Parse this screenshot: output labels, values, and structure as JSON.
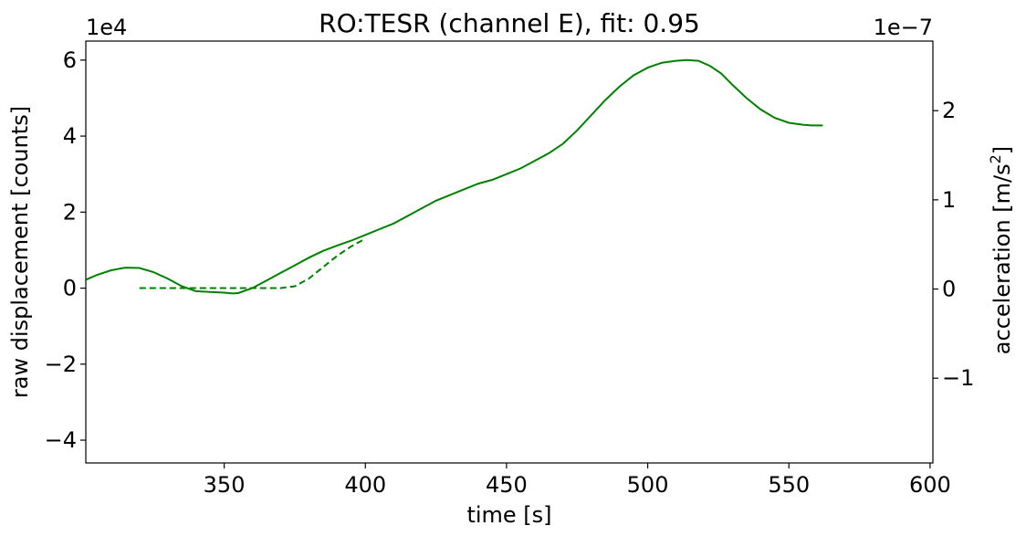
{
  "chart_data": {
    "type": "line",
    "title": "RO:TESR  (channel E), fit: 0.95",
    "xlabel": "time [s]",
    "ylabel_left": "raw displacement [counts]",
    "ylabel_right_prefix": "acceleration [m/s",
    "ylabel_right_sup": "2",
    "ylabel_right_suffix": "]",
    "left_offset_text": "1e4",
    "right_offset_text": "1e−7",
    "xlim": [
      301,
      601
    ],
    "ylim_left": [
      -4.6,
      6.5
    ],
    "ylim_right": [
      -1.95,
      2.78
    ],
    "x_ticks": [
      350,
      400,
      450,
      500,
      550,
      600
    ],
    "x_tick_labels": [
      "350",
      "400",
      "450",
      "500",
      "550",
      "600"
    ],
    "y_left_ticks": [
      -4,
      -2,
      0,
      2,
      4,
      6
    ],
    "y_left_tick_labels": [
      "−4",
      "−2",
      "0",
      "2",
      "4",
      "6"
    ],
    "y_right_ticks": [
      -1,
      0,
      1,
      2
    ],
    "y_right_tick_labels": [
      "−1",
      "0",
      "1",
      "2"
    ],
    "color": "#008000",
    "series": [
      {
        "style": "solid",
        "axis": "left",
        "x": [
          301,
          305,
          310,
          315,
          320,
          325,
          330,
          335,
          340,
          345,
          350,
          353,
          355,
          360,
          365,
          370,
          375,
          380,
          385,
          390,
          395,
          400,
          405,
          410,
          415,
          420,
          425,
          430,
          435,
          440,
          445,
          450,
          455,
          460,
          465,
          470,
          475,
          480,
          485,
          490,
          495,
          500,
          505,
          510,
          514,
          518,
          522,
          526,
          530,
          535,
          540,
          545,
          550,
          555,
          558,
          562
        ],
        "y": [
          0.22,
          0.35,
          0.47,
          0.54,
          0.53,
          0.42,
          0.25,
          0.05,
          -0.08,
          -0.1,
          -0.12,
          -0.14,
          -0.13,
          0.0,
          0.2,
          0.4,
          0.6,
          0.8,
          0.98,
          1.12,
          1.25,
          1.4,
          1.55,
          1.7,
          1.9,
          2.1,
          2.3,
          2.45,
          2.6,
          2.75,
          2.85,
          3.0,
          3.15,
          3.35,
          3.55,
          3.8,
          4.15,
          4.55,
          4.95,
          5.3,
          5.6,
          5.8,
          5.93,
          5.98,
          6.0,
          5.98,
          5.85,
          5.65,
          5.35,
          5.0,
          4.7,
          4.48,
          4.35,
          4.3,
          4.28,
          4.28
        ]
      },
      {
        "style": "dashed",
        "axis": "left",
        "x": [
          320,
          330,
          340,
          350,
          360,
          370,
          375,
          380,
          385,
          390,
          395,
          400
        ],
        "y": [
          0,
          0,
          0,
          0,
          0,
          0,
          0.05,
          0.25,
          0.55,
          0.85,
          1.1,
          1.3
        ]
      }
    ]
  }
}
